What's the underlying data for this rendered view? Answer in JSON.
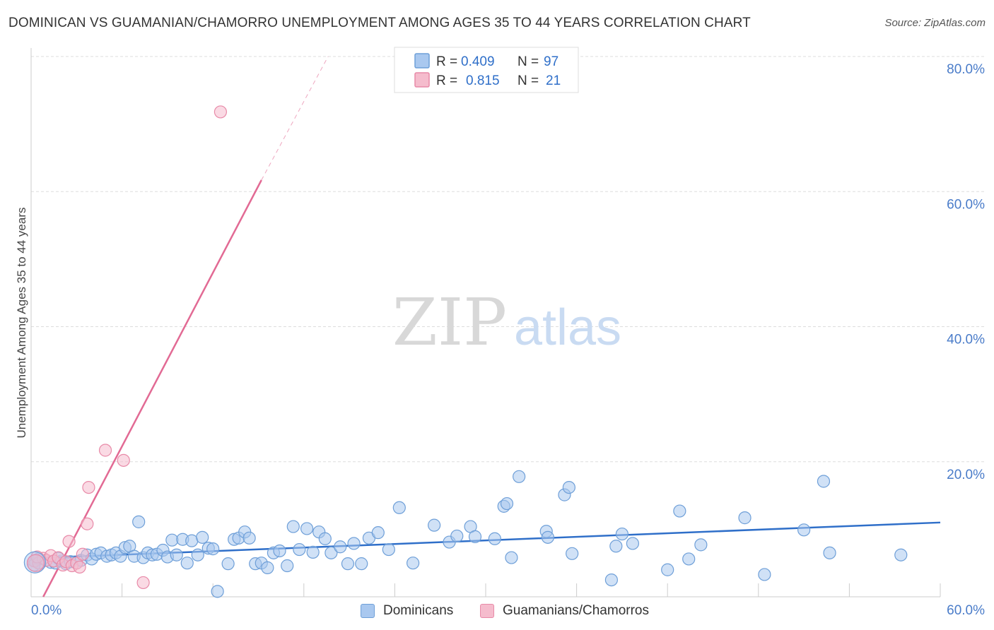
{
  "header": {
    "title": "DOMINICAN VS GUAMANIAN/CHAMORRO UNEMPLOYMENT AMONG AGES 35 TO 44 YEARS CORRELATION CHART",
    "source": "Source: ZipAtlas.com"
  },
  "watermark": {
    "zip": "ZIP",
    "atlas": "atlas"
  },
  "colors": {
    "blue_fill": "#a9c8ef",
    "blue_stroke": "#6e9fd8",
    "blue_line": "#2f6fc9",
    "pink_fill": "#f5bccd",
    "pink_stroke": "#e88aa8",
    "pink_line": "#e26a94",
    "axis_label": "#4a7cc9",
    "grid": "#dddddd"
  },
  "legend_top": {
    "rows": [
      {
        "series": "Dominicans",
        "r_label": "R =",
        "r_value": "0.409",
        "n_label": "N =",
        "n_value": "97"
      },
      {
        "series": "Guamanians/Chamorros",
        "r_label": "R =",
        "r_value": "0.815",
        "n_label": "N =",
        "n_value": "21"
      }
    ]
  },
  "legend_bottom": {
    "items": [
      "Dominicans",
      "Guamanians/Chamorros"
    ]
  },
  "chart_data": {
    "type": "scatter",
    "title": "DOMINICAN VS GUAMANIAN/CHAMORRO UNEMPLOYMENT AMONG AGES 35 TO 44 YEARS CORRELATION CHART",
    "xlabel": "",
    "ylabel": "Unemployment Among Ages 35 to 44 years",
    "xlim": [
      0,
      60
    ],
    "ylim": [
      0,
      80
    ],
    "x_tick_labels": [
      {
        "value": 0,
        "label": "0.0%"
      },
      {
        "value": 60,
        "label": "60.0%"
      }
    ],
    "y_tick_labels": [
      {
        "value": 20,
        "label": "20.0%"
      },
      {
        "value": 40,
        "label": "40.0%"
      },
      {
        "value": 60,
        "label": "60.0%"
      },
      {
        "value": 80,
        "label": "80.0%"
      }
    ],
    "x_minor_ticks": [
      0,
      6,
      12,
      18,
      24,
      30,
      36,
      42,
      48,
      54,
      60
    ],
    "grid": true,
    "series": [
      {
        "name": "Dominicans",
        "points": [
          [
            0.3,
            5.3
          ],
          [
            0.6,
            5.0
          ],
          [
            1.0,
            5.4
          ],
          [
            1.3,
            5.1
          ],
          [
            1.6,
            5.0
          ],
          [
            2.0,
            5.3
          ],
          [
            2.3,
            4.9
          ],
          [
            2.6,
            5.2
          ],
          [
            3.0,
            5.0
          ],
          [
            3.3,
            5.4
          ],
          [
            3.7,
            6.2
          ],
          [
            4.0,
            5.6
          ],
          [
            4.3,
            6.3
          ],
          [
            4.6,
            6.5
          ],
          [
            5.0,
            6.0
          ],
          [
            5.3,
            6.2
          ],
          [
            5.6,
            6.5
          ],
          [
            5.9,
            6.0
          ],
          [
            6.2,
            7.3
          ],
          [
            6.5,
            7.5
          ],
          [
            6.8,
            6.0
          ],
          [
            7.1,
            11.1
          ],
          [
            7.4,
            5.8
          ],
          [
            7.7,
            6.5
          ],
          [
            8.0,
            6.2
          ],
          [
            8.3,
            6.3
          ],
          [
            8.7,
            6.9
          ],
          [
            9.0,
            5.9
          ],
          [
            9.3,
            8.4
          ],
          [
            9.6,
            6.2
          ],
          [
            10.0,
            8.5
          ],
          [
            10.3,
            5.0
          ],
          [
            10.6,
            8.3
          ],
          [
            11.0,
            6.2
          ],
          [
            11.3,
            8.8
          ],
          [
            11.7,
            7.2
          ],
          [
            12.0,
            7.1
          ],
          [
            12.3,
            0.8
          ],
          [
            13.0,
            4.9
          ],
          [
            13.4,
            8.5
          ],
          [
            13.7,
            8.7
          ],
          [
            14.1,
            9.6
          ],
          [
            14.4,
            8.7
          ],
          [
            14.8,
            4.9
          ],
          [
            15.2,
            5.0
          ],
          [
            15.6,
            4.3
          ],
          [
            16.0,
            6.5
          ],
          [
            16.4,
            6.8
          ],
          [
            16.9,
            4.6
          ],
          [
            17.3,
            10.4
          ],
          [
            17.7,
            7.0
          ],
          [
            18.2,
            10.1
          ],
          [
            18.6,
            6.6
          ],
          [
            19.0,
            9.6
          ],
          [
            19.4,
            8.6
          ],
          [
            19.8,
            6.5
          ],
          [
            20.4,
            7.4
          ],
          [
            20.9,
            4.9
          ],
          [
            21.3,
            7.9
          ],
          [
            21.8,
            4.9
          ],
          [
            22.3,
            8.7
          ],
          [
            22.9,
            9.5
          ],
          [
            23.6,
            7.0
          ],
          [
            24.3,
            13.2
          ],
          [
            25.2,
            5.0
          ],
          [
            26.6,
            10.6
          ],
          [
            27.6,
            8.1
          ],
          [
            28.1,
            9.0
          ],
          [
            29.0,
            10.4
          ],
          [
            29.3,
            8.9
          ],
          [
            30.6,
            8.6
          ],
          [
            31.2,
            13.4
          ],
          [
            31.4,
            13.8
          ],
          [
            31.7,
            5.8
          ],
          [
            32.2,
            17.8
          ],
          [
            34.0,
            9.7
          ],
          [
            34.1,
            8.8
          ],
          [
            35.2,
            15.1
          ],
          [
            35.5,
            16.2
          ],
          [
            35.7,
            6.4
          ],
          [
            38.3,
            2.5
          ],
          [
            38.6,
            7.5
          ],
          [
            39.0,
            9.3
          ],
          [
            39.7,
            7.9
          ],
          [
            42.0,
            4.0
          ],
          [
            42.8,
            12.7
          ],
          [
            43.4,
            5.6
          ],
          [
            44.2,
            7.7
          ],
          [
            47.1,
            11.7
          ],
          [
            48.4,
            3.3
          ],
          [
            51.0,
            9.9
          ],
          [
            52.3,
            17.1
          ],
          [
            52.7,
            6.5
          ],
          [
            57.4,
            6.2
          ],
          [
            0.2,
            4.7
          ],
          [
            0.5,
            5.6
          ],
          [
            1.8,
            5.7
          ]
        ],
        "trend": {
          "x": [
            0,
            60
          ],
          "y": [
            5.7,
            11.0
          ]
        }
      },
      {
        "name": "Guamanians/Chamorros",
        "points": [
          [
            0.2,
            5.3
          ],
          [
            0.5,
            5.0
          ],
          [
            0.8,
            5.7
          ],
          [
            1.0,
            5.4
          ],
          [
            1.3,
            6.1
          ],
          [
            1.5,
            5.3
          ],
          [
            1.8,
            5.8
          ],
          [
            2.1,
            4.7
          ],
          [
            2.3,
            5.2
          ],
          [
            2.5,
            8.2
          ],
          [
            2.7,
            4.6
          ],
          [
            3.0,
            5.0
          ],
          [
            3.2,
            4.4
          ],
          [
            3.4,
            6.3
          ],
          [
            3.7,
            10.8
          ],
          [
            3.8,
            16.2
          ],
          [
            4.9,
            21.7
          ],
          [
            6.1,
            20.2
          ],
          [
            7.4,
            2.1
          ],
          [
            12.5,
            71.8
          ],
          [
            0.4,
            5.9
          ]
        ],
        "trend": {
          "x": [
            0.8,
            15.2
          ],
          "y": [
            0.0,
            61.7
          ]
        },
        "trend_extension": {
          "x": [
            15.2,
            19.6
          ],
          "y": [
            61.7,
            80.0
          ]
        }
      }
    ]
  }
}
